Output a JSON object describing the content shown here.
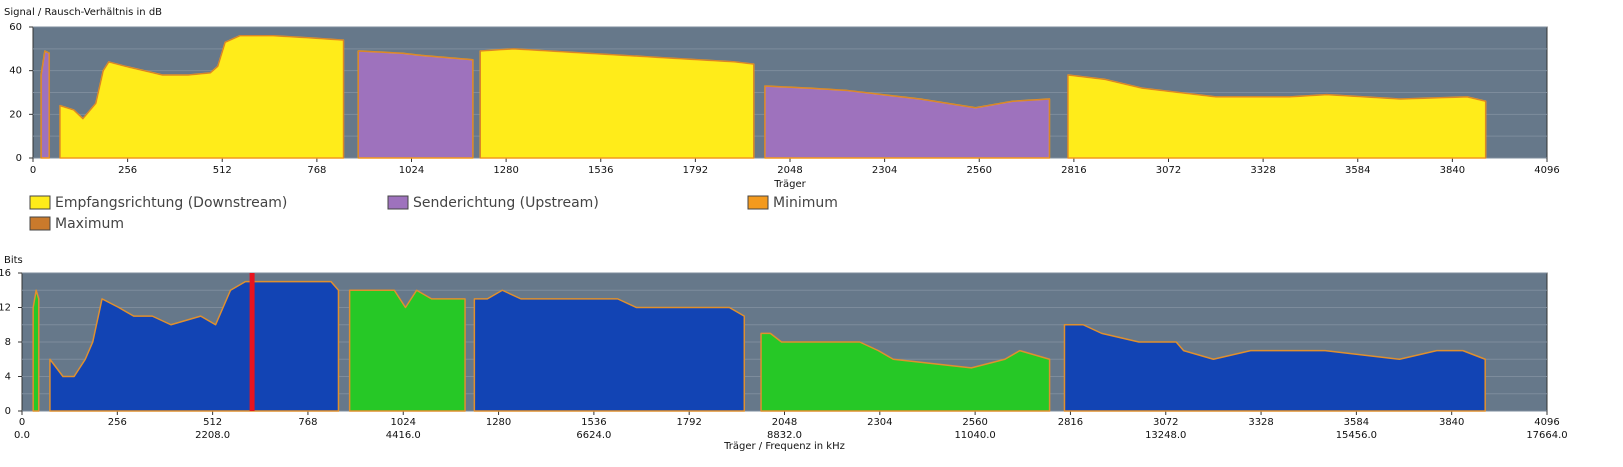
{
  "chart_data": [
    {
      "type": "area",
      "ylabel": "Signal / Rausch-Verhältnis in dB",
      "xlabel": "Träger",
      "xlim": [
        0,
        4096
      ],
      "xticks": [
        0,
        256,
        512,
        768,
        1024,
        1280,
        1536,
        1792,
        2048,
        2304,
        2560,
        2816,
        3072,
        3328,
        3584,
        3840,
        4096
      ],
      "ylim": [
        0,
        60
      ],
      "yticks": [
        0,
        20,
        40,
        60
      ],
      "yminor": [
        10,
        30,
        50
      ],
      "grid": true,
      "series": [
        {
          "name": "Empfangsrichtung (Downstream)",
          "color": "#ffec1a",
          "x": [
            73,
            110,
            135,
            170,
            190,
            205,
            250,
            300,
            350,
            420,
            480,
            500,
            520,
            560,
            650,
            750,
            840,
            null,
            1210,
            1300,
            1500,
            1700,
            1900,
            1950,
            null,
            2800,
            2900,
            3000,
            3100,
            3200,
            3400,
            3500,
            3700,
            3880,
            3930
          ],
          "values": [
            24,
            22,
            18,
            25,
            40,
            44,
            42,
            40,
            38,
            38,
            39,
            42,
            53,
            56,
            56,
            55,
            54,
            null,
            49,
            50,
            48,
            46,
            44,
            43,
            null,
            38,
            36,
            32,
            30,
            28,
            28,
            29,
            27,
            28,
            26
          ]
        },
        {
          "name": "Senderichtung (Upstream)",
          "color": "#9e72bd",
          "x": [
            22,
            32,
            44,
            null,
            880,
            1000,
            1050,
            1190,
            null,
            1980,
            2100,
            2200,
            2400,
            2550,
            2650,
            2750
          ],
          "values": [
            38,
            49,
            48,
            null,
            49,
            48,
            47,
            45,
            null,
            33,
            32,
            31,
            27,
            23,
            26,
            27
          ]
        }
      ],
      "lines": [
        {
          "name": "Minimum",
          "color": "#f39a1e"
        },
        {
          "name": "Maximum",
          "color": "#c97a2c"
        }
      ]
    },
    {
      "type": "area",
      "ylabel": "Bits",
      "xlabel": "Träger / Frequenz in kHz",
      "xlim": [
        0,
        4096
      ],
      "xticks": [
        0,
        256,
        512,
        768,
        1024,
        1280,
        1536,
        1792,
        2048,
        2304,
        2560,
        2816,
        3072,
        3328,
        3584,
        3840,
        4096
      ],
      "x2lim": [
        0,
        17664
      ],
      "x2ticks": [
        {
          "value": 0,
          "label": "0.0"
        },
        {
          "value": 2208,
          "label": "2208.0"
        },
        {
          "value": 4416,
          "label": "4416.0"
        },
        {
          "value": 6624,
          "label": "6624.0"
        },
        {
          "value": 8832,
          "label": "8832.0"
        },
        {
          "value": 11040,
          "label": "11040.0"
        },
        {
          "value": 13248,
          "label": "13248.0"
        },
        {
          "value": 15456,
          "label": "15456.0"
        },
        {
          "value": 17664,
          "label": "17664.0"
        }
      ],
      "ylim": [
        0,
        16
      ],
      "yticks": [
        0,
        4,
        8,
        12,
        16
      ],
      "yminor": [
        2,
        6,
        10,
        14
      ],
      "grid": true,
      "outline_color": "#e0902e",
      "series": [
        {
          "name": "Downstream",
          "color": "#1244b4",
          "x": [
            75,
            110,
            140,
            170,
            190,
            205,
            215,
            260,
            300,
            350,
            400,
            480,
            520,
            560,
            600,
            700,
            830,
            850,
            null,
            1215,
            1250,
            1290,
            1340,
            1600,
            1650,
            1800,
            1900,
            1940,
            null,
            2800,
            2850,
            2900,
            3000,
            3100,
            3120,
            3200,
            3300,
            3500,
            3700,
            3800,
            3870,
            3930
          ],
          "values": [
            6,
            4,
            4,
            6,
            8,
            11,
            13,
            12,
            11,
            11,
            10,
            11,
            10,
            14,
            15,
            15,
            15,
            14,
            null,
            13,
            13,
            14,
            13,
            13,
            12,
            12,
            12,
            11,
            null,
            10,
            10,
            9,
            8,
            8,
            7,
            6,
            7,
            7,
            6,
            7,
            7,
            6
          ]
        },
        {
          "name": "Upstream",
          "color": "#26c826",
          "x": [
            30,
            38,
            45,
            null,
            880,
            1000,
            1030,
            1060,
            1100,
            1190,
            null,
            1985,
            2010,
            2040,
            2250,
            2300,
            2340,
            2550,
            2640,
            2680,
            2760
          ],
          "values": [
            12,
            14,
            13,
            null,
            14,
            14,
            12,
            14,
            13,
            13,
            null,
            9,
            9,
            8,
            8,
            7,
            6,
            5,
            6,
            7,
            6
          ]
        }
      ],
      "pilot": {
        "x": 618,
        "color": "#e8141e"
      }
    }
  ]
}
